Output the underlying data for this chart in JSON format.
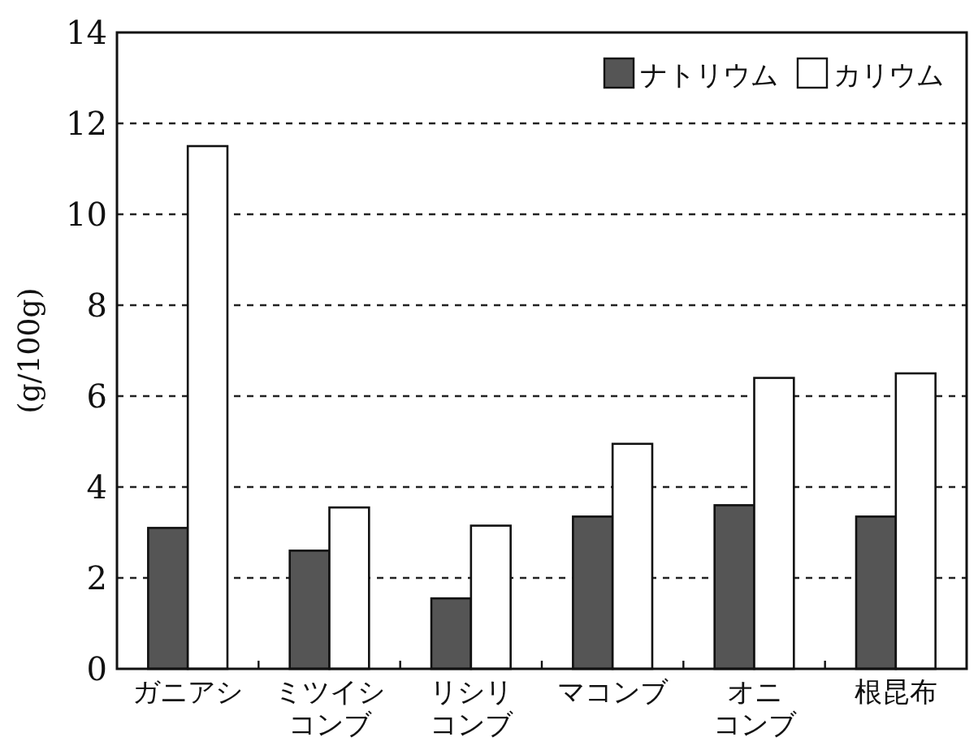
{
  "chart_data": {
    "type": "bar",
    "ylabel": "(g/100g)",
    "categories": [
      "ガニアシ",
      "ミツイシコンブ",
      "リシリコンブ",
      "マコンブ",
      "オニコンブ",
      "根昆布"
    ],
    "series": [
      {
        "name": "ナトリウム",
        "color": "#555555",
        "values": [
          3.1,
          2.6,
          1.55,
          3.35,
          3.6,
          3.35
        ]
      },
      {
        "name": "カリウム",
        "color": "#ffffff",
        "values": [
          11.5,
          3.55,
          3.15,
          4.95,
          6.4,
          6.5
        ]
      }
    ],
    "ylim": [
      0,
      14
    ],
    "yticks": [
      0,
      2,
      4,
      6,
      8,
      10,
      12,
      14
    ],
    "grid": "y",
    "line_style": "dashed",
    "legend": "top right"
  }
}
